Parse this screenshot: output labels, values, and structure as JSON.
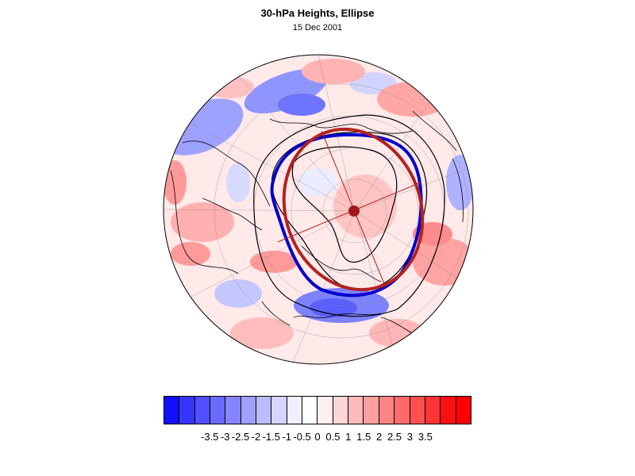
{
  "header": {
    "title": "30-hPa Heights, Ellipse",
    "date": "15 Dec 2001"
  },
  "map": {
    "projection": "north-polar-orthographic",
    "field": "30-hPa height anomaly",
    "contours": {
      "count": 3,
      "color": "#000000"
    },
    "observed_vortex_edge": {
      "color": "#0000cc"
    },
    "fitted_ellipse": {
      "color": "#b22222",
      "center_marker": "filled-circle"
    }
  },
  "colorbar": {
    "colors": [
      "#1010ff",
      "#3535ff",
      "#5050ff",
      "#6b6bff",
      "#8585ff",
      "#a0a0ff",
      "#bbbbff",
      "#d5d5ff",
      "#efefff",
      "#ffffff",
      "#ffefef",
      "#ffd5d5",
      "#ffbbbb",
      "#ffa0a0",
      "#ff8585",
      "#ff6b6b",
      "#ff5050",
      "#ff3535",
      "#ff1010",
      "#ff0000"
    ],
    "tick_labels": [
      "-3.5",
      "-3",
      "-2.5",
      "-2",
      "-1.5",
      "-1",
      "-0.5",
      "0",
      "0.5",
      "1",
      "1.5",
      "2",
      "2.5",
      "3",
      "3.5"
    ]
  }
}
